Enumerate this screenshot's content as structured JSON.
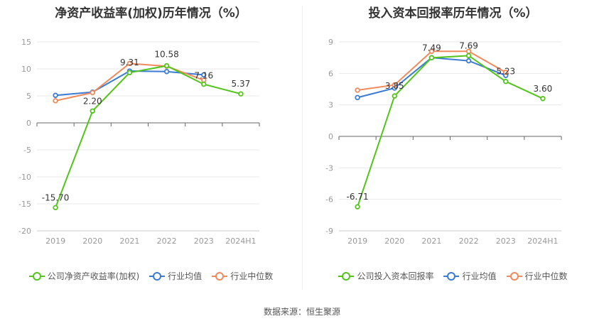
{
  "source": "数据来源：恒生聚源",
  "chart_data": [
    {
      "type": "line",
      "title": "净资产收益率(加权)历年情况（%）",
      "categories": [
        "2019",
        "2020",
        "2021",
        "2022",
        "2023",
        "2024H1"
      ],
      "ylim": [
        -20,
        15
      ],
      "yticks": [
        15,
        10,
        5,
        0,
        -5,
        -10,
        -15,
        -20
      ],
      "grid": true,
      "legend_position": "bottom",
      "series": [
        {
          "name": "公司净资产收益率(加权)",
          "color": "#52c41a",
          "values": [
            -15.7,
            2.2,
            9.31,
            10.58,
            7.16,
            5.37
          ],
          "labels": [
            "-15.70",
            "2.20",
            "9.31",
            "10.58",
            "7.16",
            "5.37"
          ]
        },
        {
          "name": "行业均值",
          "color": "#3a7bd5",
          "values": [
            5.1,
            5.7,
            9.6,
            9.5,
            8.9,
            null
          ]
        },
        {
          "name": "行业中位数",
          "color": "#f08a5d",
          "values": [
            4.1,
            5.6,
            11.0,
            10.5,
            7.9,
            null
          ]
        }
      ]
    },
    {
      "type": "line",
      "title": "投入资本回报率历年情况（%）",
      "categories": [
        "2019",
        "2020",
        "2021",
        "2022",
        "2023",
        "2024H1"
      ],
      "ylim": [
        -9,
        9
      ],
      "yticks": [
        9,
        6,
        3,
        0,
        -3,
        -6,
        -9
      ],
      "grid": true,
      "legend_position": "bottom",
      "series": [
        {
          "name": "公司投入资本回报率",
          "color": "#52c41a",
          "values": [
            -6.71,
            3.85,
            7.49,
            7.69,
            5.23,
            3.6
          ],
          "labels": [
            "-6.71",
            "3.85",
            "7.49",
            "7.69",
            "5.23",
            "3.60"
          ]
        },
        {
          "name": "行业均值",
          "color": "#3a7bd5",
          "values": [
            3.7,
            4.6,
            7.5,
            7.2,
            5.8,
            null
          ]
        },
        {
          "name": "行业中位数",
          "color": "#f08a5d",
          "values": [
            4.4,
            4.9,
            8.1,
            8.1,
            6.1,
            null
          ]
        }
      ]
    }
  ]
}
